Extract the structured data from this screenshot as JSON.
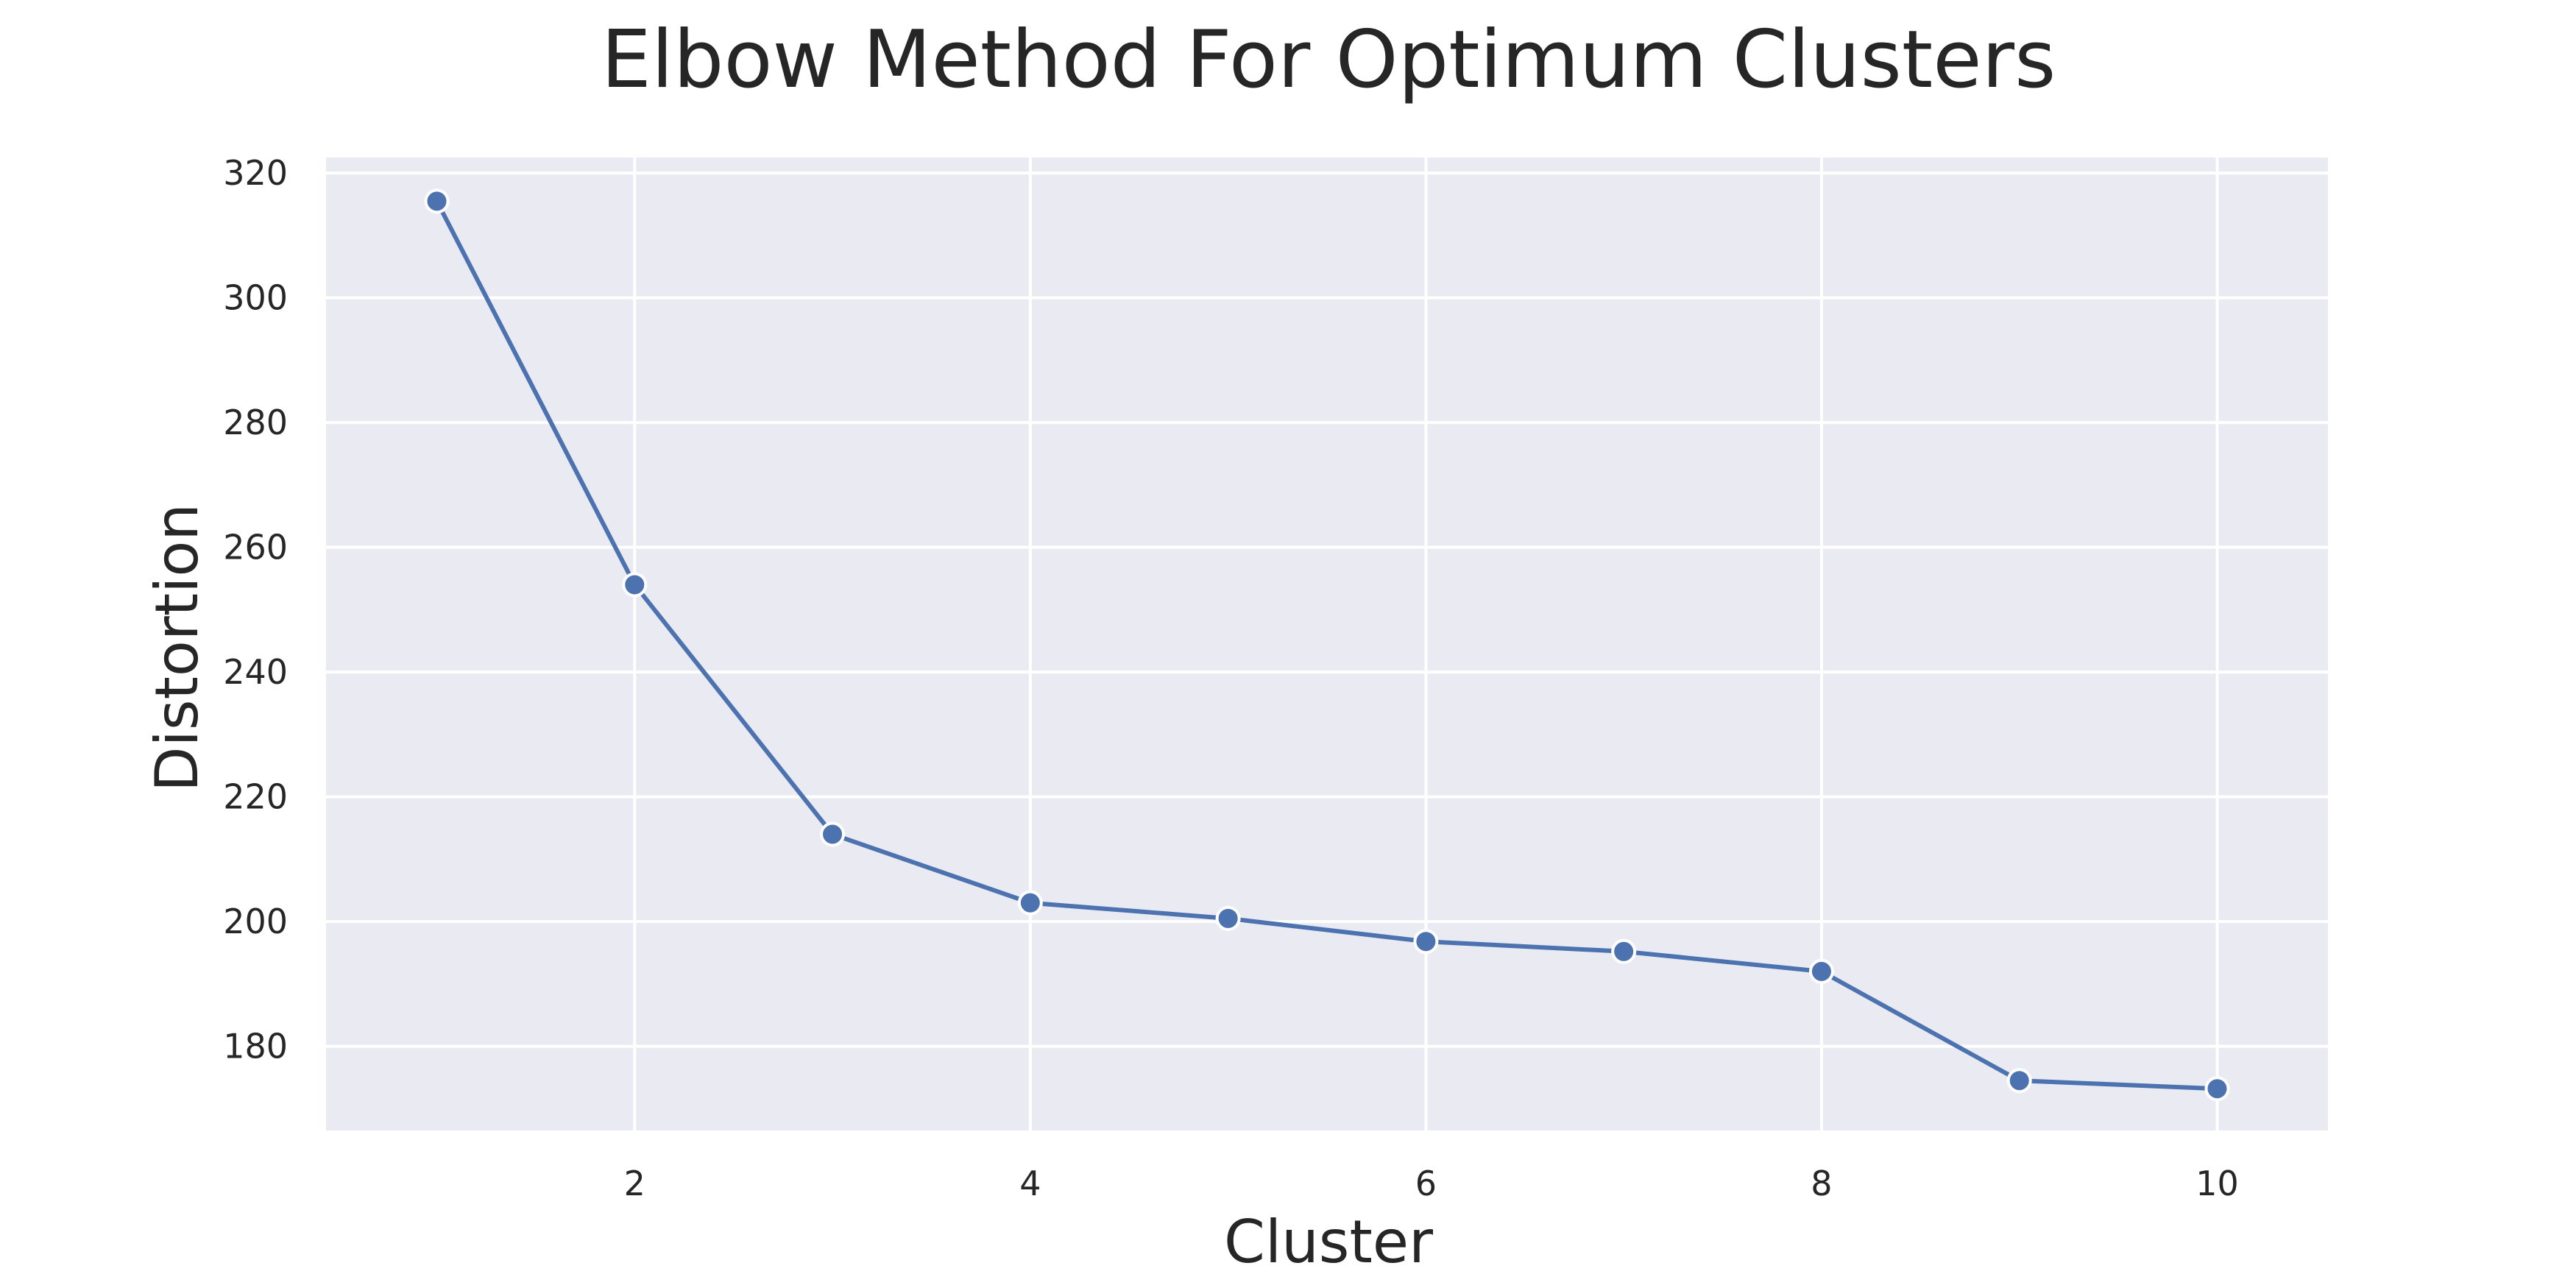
{
  "chart_data": {
    "type": "line",
    "title": "Elbow Method For Optimum Clusters",
    "xlabel": "Cluster",
    "ylabel": "Distortion",
    "x": [
      1,
      2,
      3,
      4,
      5,
      6,
      7,
      8,
      9,
      10
    ],
    "series": [
      {
        "values": [
          315.5,
          254.0,
          214.0,
          203.0,
          200.5,
          196.8,
          195.2,
          192.0,
          174.5,
          173.2
        ]
      }
    ],
    "xlim": [
      0.44,
      10.56
    ],
    "ylim": [
      166.5,
      322.5
    ],
    "xticks": [
      2,
      4,
      6,
      8,
      10
    ],
    "yticks": [
      180,
      200,
      220,
      240,
      260,
      280,
      300,
      320
    ],
    "grid": true,
    "colors": {
      "line": "#4c72b0",
      "plot_background": "#eaeaf2",
      "grid": "#ffffff",
      "marker_edge": "#ffffff"
    }
  }
}
